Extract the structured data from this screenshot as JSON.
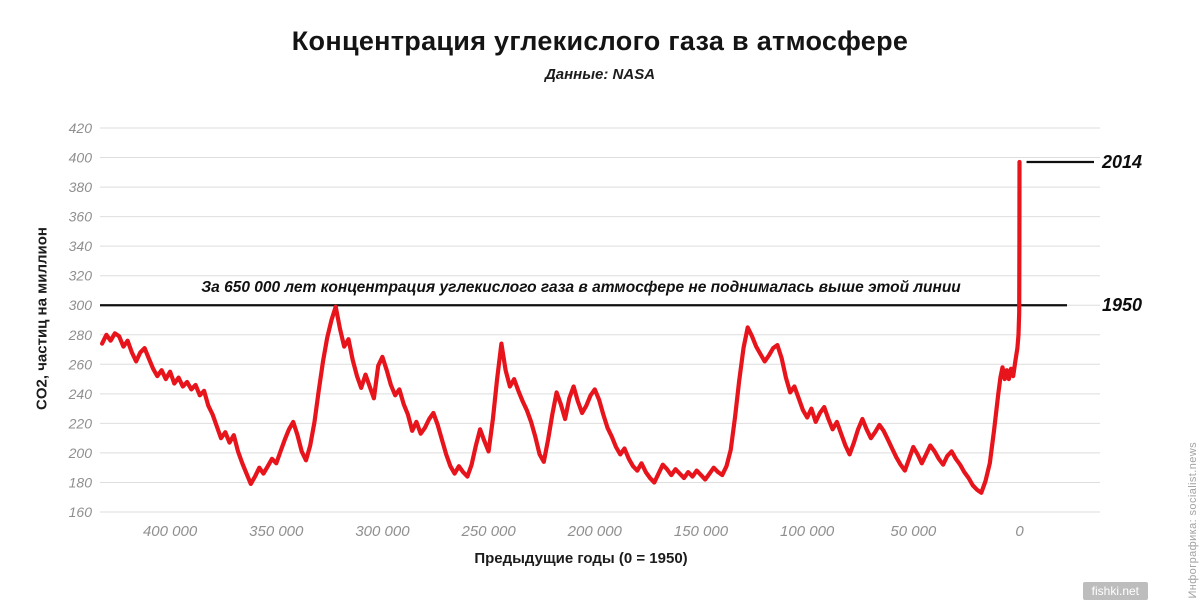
{
  "title": "Концентрация углекислого газа в атмосфере",
  "subtitle": "Данные: NASA",
  "watermark_side": "Инфографика: socialist.news",
  "watermark_corner": "fishki.net",
  "chart_data": {
    "type": "line",
    "title": "Концентрация углекислого газа в атмосфере",
    "subtitle": "Данные: NASA",
    "xlabel": "Предыдущие годы (0 = 1950)",
    "ylabel": "CO2, частиц на миллион",
    "grid": "horizontal",
    "legend": "none",
    "line_color": "#e8141c",
    "grid_color": "#dedede",
    "tick_color": "#8f8f8f",
    "x_axis": {
      "domain": [
        433000,
        -20000
      ],
      "ticks": [
        400000,
        350000,
        300000,
        250000,
        200000,
        150000,
        100000,
        50000,
        0
      ],
      "tick_labels": [
        "400 000",
        "350 000",
        "300 000",
        "250 000",
        "200 000",
        "150 000",
        "100 000",
        "50 000",
        "0"
      ]
    },
    "y_axis": {
      "domain": [
        160,
        420
      ],
      "ticks": [
        160,
        180,
        200,
        220,
        240,
        260,
        280,
        300,
        320,
        340,
        360,
        380,
        400,
        420
      ]
    },
    "threshold": {
      "value": 300,
      "label": "За 650 000 лет концентрация углекислого газа в атмосфере не поднималась выше этой линии",
      "callout_label": "1950"
    },
    "peak_callout": {
      "label": "2014",
      "value": 397,
      "x": 0
    },
    "series": [
      {
        "name": "CO2, ppm",
        "points": [
          [
            432000,
            274
          ],
          [
            430000,
            280
          ],
          [
            428000,
            276
          ],
          [
            426000,
            281
          ],
          [
            424000,
            279
          ],
          [
            422000,
            272
          ],
          [
            420000,
            276
          ],
          [
            418000,
            268
          ],
          [
            416000,
            262
          ],
          [
            414000,
            268
          ],
          [
            412000,
            271
          ],
          [
            410000,
            264
          ],
          [
            408000,
            257
          ],
          [
            406000,
            252
          ],
          [
            404000,
            256
          ],
          [
            402000,
            250
          ],
          [
            400000,
            255
          ],
          [
            398000,
            247
          ],
          [
            396000,
            251
          ],
          [
            394000,
            245
          ],
          [
            392000,
            248
          ],
          [
            390000,
            243
          ],
          [
            388000,
            246
          ],
          [
            386000,
            239
          ],
          [
            384000,
            242
          ],
          [
            382000,
            232
          ],
          [
            380000,
            226
          ],
          [
            378000,
            218
          ],
          [
            376000,
            210
          ],
          [
            374000,
            214
          ],
          [
            372000,
            207
          ],
          [
            370000,
            212
          ],
          [
            368000,
            201
          ],
          [
            366000,
            193
          ],
          [
            364000,
            186
          ],
          [
            362000,
            179
          ],
          [
            360000,
            184
          ],
          [
            358000,
            190
          ],
          [
            356000,
            186
          ],
          [
            354000,
            191
          ],
          [
            352000,
            196
          ],
          [
            350000,
            193
          ],
          [
            348000,
            201
          ],
          [
            346000,
            209
          ],
          [
            344000,
            216
          ],
          [
            342000,
            221
          ],
          [
            340000,
            212
          ],
          [
            338000,
            201
          ],
          [
            336000,
            195
          ],
          [
            334000,
            205
          ],
          [
            332000,
            221
          ],
          [
            330000,
            242
          ],
          [
            328000,
            262
          ],
          [
            326000,
            278
          ],
          [
            324000,
            290
          ],
          [
            322000,
            299
          ],
          [
            320000,
            284
          ],
          [
            318000,
            272
          ],
          [
            316000,
            277
          ],
          [
            314000,
            263
          ],
          [
            312000,
            252
          ],
          [
            310000,
            244
          ],
          [
            308000,
            253
          ],
          [
            306000,
            245
          ],
          [
            304000,
            237
          ],
          [
            302000,
            259
          ],
          [
            300000,
            265
          ],
          [
            298000,
            256
          ],
          [
            296000,
            246
          ],
          [
            294000,
            239
          ],
          [
            292000,
            243
          ],
          [
            290000,
            233
          ],
          [
            288000,
            226
          ],
          [
            286000,
            215
          ],
          [
            284000,
            221
          ],
          [
            282000,
            213
          ],
          [
            280000,
            217
          ],
          [
            278000,
            223
          ],
          [
            276000,
            227
          ],
          [
            274000,
            219
          ],
          [
            272000,
            209
          ],
          [
            270000,
            199
          ],
          [
            268000,
            191
          ],
          [
            266000,
            186
          ],
          [
            264000,
            191
          ],
          [
            262000,
            187
          ],
          [
            260000,
            184
          ],
          [
            258000,
            192
          ],
          [
            256000,
            205
          ],
          [
            254000,
            216
          ],
          [
            252000,
            208
          ],
          [
            250000,
            201
          ],
          [
            248000,
            223
          ],
          [
            246000,
            250
          ],
          [
            244000,
            274
          ],
          [
            242000,
            256
          ],
          [
            240000,
            245
          ],
          [
            238000,
            250
          ],
          [
            236000,
            242
          ],
          [
            234000,
            235
          ],
          [
            232000,
            229
          ],
          [
            230000,
            221
          ],
          [
            228000,
            211
          ],
          [
            226000,
            199
          ],
          [
            224000,
            194
          ],
          [
            222000,
            209
          ],
          [
            220000,
            226
          ],
          [
            218000,
            241
          ],
          [
            216000,
            233
          ],
          [
            214000,
            223
          ],
          [
            212000,
            237
          ],
          [
            210000,
            245
          ],
          [
            208000,
            235
          ],
          [
            206000,
            227
          ],
          [
            204000,
            232
          ],
          [
            202000,
            239
          ],
          [
            200000,
            243
          ],
          [
            198000,
            236
          ],
          [
            196000,
            226
          ],
          [
            194000,
            217
          ],
          [
            192000,
            211
          ],
          [
            190000,
            204
          ],
          [
            188000,
            199
          ],
          [
            186000,
            203
          ],
          [
            184000,
            196
          ],
          [
            182000,
            191
          ],
          [
            180000,
            188
          ],
          [
            178000,
            193
          ],
          [
            176000,
            187
          ],
          [
            174000,
            183
          ],
          [
            172000,
            180
          ],
          [
            170000,
            186
          ],
          [
            168000,
            192
          ],
          [
            166000,
            189
          ],
          [
            164000,
            185
          ],
          [
            162000,
            189
          ],
          [
            160000,
            186
          ],
          [
            158000,
            183
          ],
          [
            156000,
            187
          ],
          [
            154000,
            184
          ],
          [
            152000,
            188
          ],
          [
            150000,
            185
          ],
          [
            148000,
            182
          ],
          [
            146000,
            186
          ],
          [
            144000,
            190
          ],
          [
            142000,
            187
          ],
          [
            140000,
            185
          ],
          [
            138000,
            191
          ],
          [
            136000,
            202
          ],
          [
            134000,
            224
          ],
          [
            132000,
            249
          ],
          [
            130000,
            271
          ],
          [
            128000,
            285
          ],
          [
            126000,
            279
          ],
          [
            124000,
            272
          ],
          [
            122000,
            267
          ],
          [
            120000,
            262
          ],
          [
            118000,
            266
          ],
          [
            116000,
            271
          ],
          [
            114000,
            273
          ],
          [
            112000,
            264
          ],
          [
            110000,
            251
          ],
          [
            108000,
            241
          ],
          [
            106000,
            245
          ],
          [
            104000,
            237
          ],
          [
            102000,
            229
          ],
          [
            100000,
            224
          ],
          [
            98000,
            230
          ],
          [
            96000,
            221
          ],
          [
            94000,
            227
          ],
          [
            92000,
            231
          ],
          [
            90000,
            223
          ],
          [
            88000,
            216
          ],
          [
            86000,
            221
          ],
          [
            84000,
            213
          ],
          [
            82000,
            205
          ],
          [
            80000,
            199
          ],
          [
            78000,
            207
          ],
          [
            76000,
            216
          ],
          [
            74000,
            223
          ],
          [
            72000,
            216
          ],
          [
            70000,
            210
          ],
          [
            68000,
            214
          ],
          [
            66000,
            219
          ],
          [
            64000,
            215
          ],
          [
            62000,
            209
          ],
          [
            60000,
            203
          ],
          [
            58000,
            197
          ],
          [
            56000,
            192
          ],
          [
            54000,
            188
          ],
          [
            52000,
            196
          ],
          [
            50000,
            204
          ],
          [
            48000,
            199
          ],
          [
            46000,
            193
          ],
          [
            44000,
            199
          ],
          [
            42000,
            205
          ],
          [
            40000,
            201
          ],
          [
            38000,
            196
          ],
          [
            36000,
            192
          ],
          [
            34000,
            198
          ],
          [
            32000,
            201
          ],
          [
            30000,
            196
          ],
          [
            28000,
            192
          ],
          [
            26000,
            187
          ],
          [
            24000,
            183
          ],
          [
            22000,
            178
          ],
          [
            20000,
            175
          ],
          [
            18000,
            173
          ],
          [
            16000,
            181
          ],
          [
            14000,
            193
          ],
          [
            12000,
            215
          ],
          [
            10000,
            240
          ],
          [
            9000,
            251
          ],
          [
            8000,
            258
          ],
          [
            7000,
            250
          ],
          [
            6000,
            256
          ],
          [
            5000,
            250
          ],
          [
            4000,
            257
          ],
          [
            3000,
            252
          ],
          [
            2000,
            262
          ],
          [
            1000,
            271
          ],
          [
            500,
            280
          ],
          [
            150,
            295
          ],
          [
            50,
            340
          ],
          [
            0,
            397
          ]
        ]
      }
    ]
  }
}
